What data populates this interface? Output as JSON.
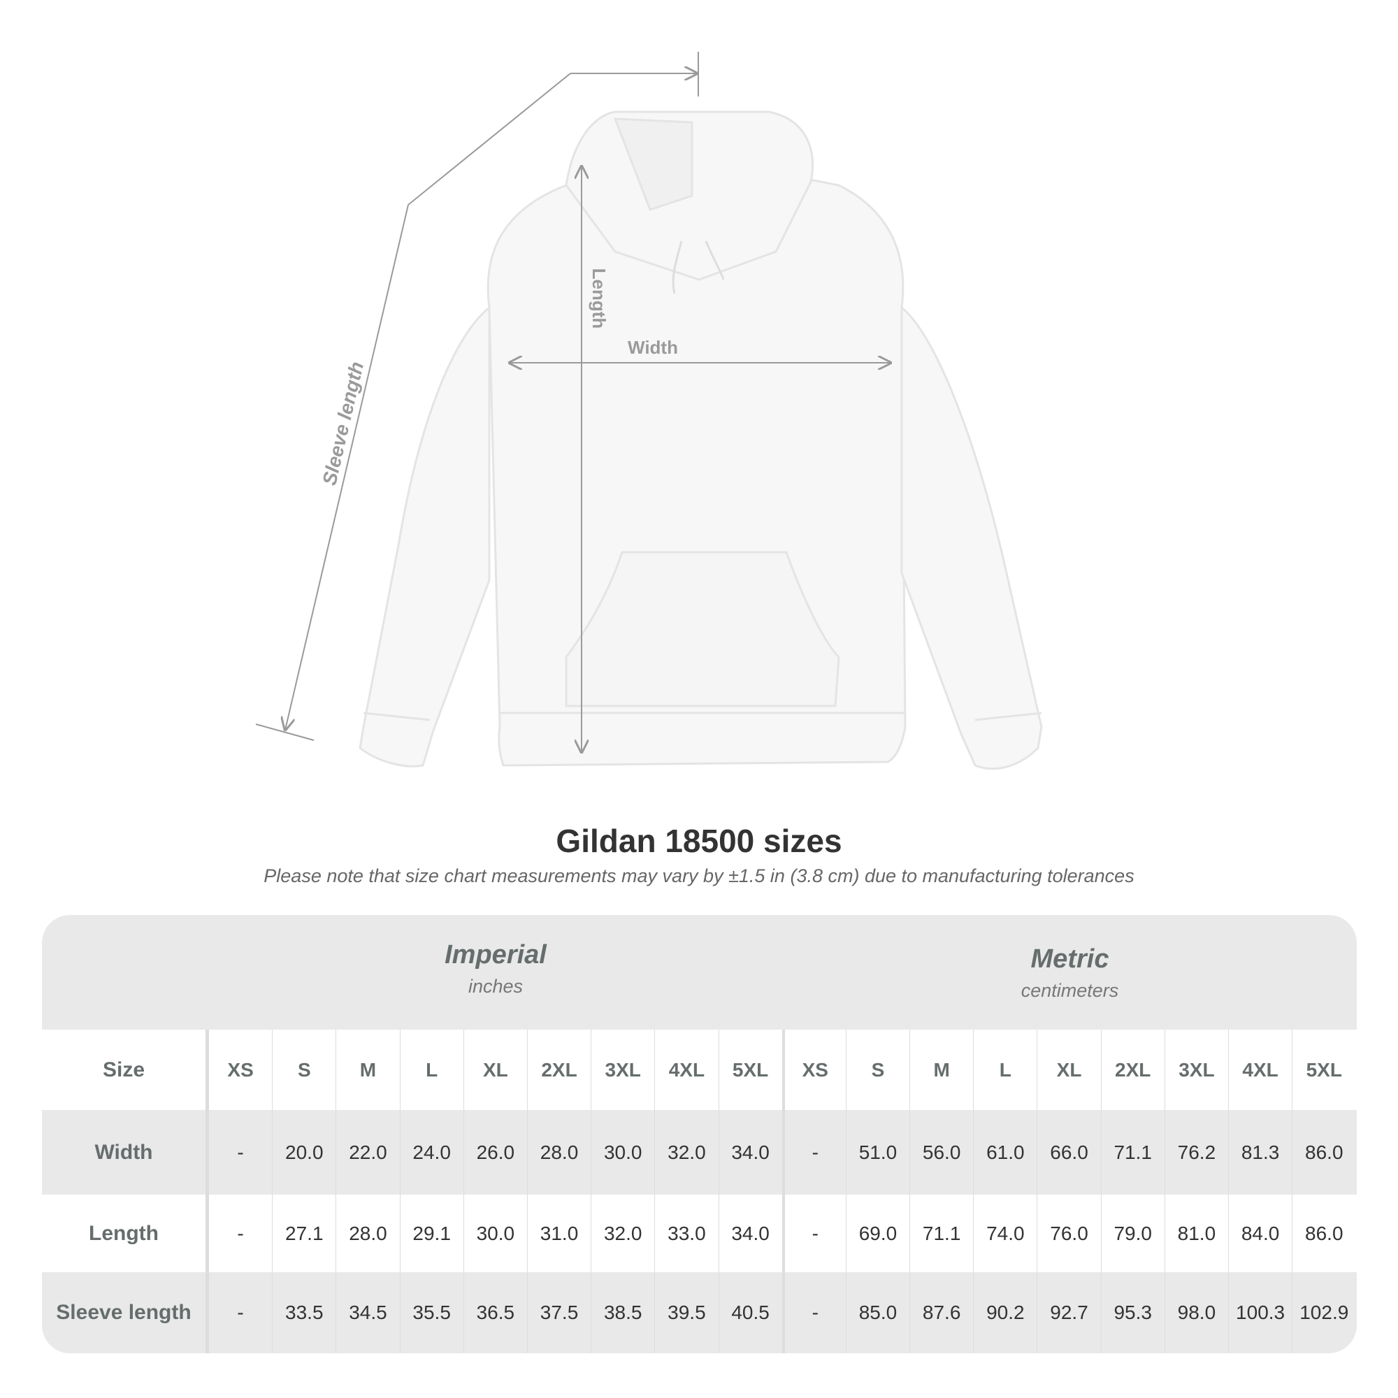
{
  "illustration": {
    "labels": {
      "length": "Length",
      "width": "Width",
      "sleeve": "Sleeve length"
    },
    "colors": {
      "garment": "#f7f7f7",
      "lines": "#9a9a9a"
    }
  },
  "title": "Gildan 18500 sizes",
  "note": "Please note that size chart measurements may vary by ±1.5 in (3.8 cm) due to manufacturing tolerances",
  "table": {
    "imperial": {
      "name": "Imperial",
      "unit": "inches"
    },
    "metric": {
      "name": "Metric",
      "unit": "centimeters"
    },
    "size_label": "Size",
    "sizes": [
      "XS",
      "S",
      "M",
      "L",
      "XL",
      "2XL",
      "3XL",
      "4XL",
      "5XL"
    ],
    "rows": [
      {
        "label": "Width",
        "imperial": [
          "-",
          "20.0",
          "22.0",
          "24.0",
          "26.0",
          "28.0",
          "30.0",
          "32.0",
          "34.0"
        ],
        "metric": [
          "-",
          "51.0",
          "56.0",
          "61.0",
          "66.0",
          "71.1",
          "76.2",
          "81.3",
          "86.0"
        ]
      },
      {
        "label": "Length",
        "imperial": [
          "-",
          "27.1",
          "28.0",
          "29.1",
          "30.0",
          "31.0",
          "32.0",
          "33.0",
          "34.0"
        ],
        "metric": [
          "-",
          "69.0",
          "71.1",
          "74.0",
          "76.0",
          "79.0",
          "81.0",
          "84.0",
          "86.0"
        ]
      },
      {
        "label": "Sleeve length",
        "imperial": [
          "-",
          "33.5",
          "34.5",
          "35.5",
          "36.5",
          "37.5",
          "38.5",
          "39.5",
          "40.5"
        ],
        "metric": [
          "-",
          "85.0",
          "87.6",
          "90.2",
          "92.7",
          "95.3",
          "98.0",
          "100.3",
          "102.9"
        ]
      }
    ]
  }
}
